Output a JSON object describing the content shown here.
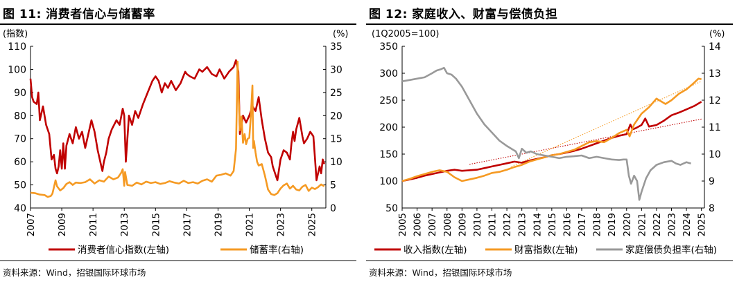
{
  "figures": [
    {
      "title": "图 11: 消费者信心与储蓄率",
      "left_unit": "(指数)",
      "right_unit": "(%)",
      "source": "资料来源：Wind，招银国际环球市场"
    },
    {
      "title": "图 12: 家庭收入、财富与偿债负担",
      "left_unit": "(1Q2005=100)",
      "right_unit": "(%)",
      "source": "资料来源：Wind，招银国际环球市场"
    }
  ],
  "chart_data": [
    {
      "type": "line",
      "title": "图 11: 消费者信心与储蓄率",
      "ylabel": "(指数)",
      "y2label": "(%)",
      "xlim": [
        2007,
        2025.9
      ],
      "ylim": [
        40,
        110
      ],
      "y2lim": [
        0,
        35
      ],
      "yticks": [
        40,
        50,
        60,
        70,
        80,
        90,
        100,
        110
      ],
      "y2ticks": [
        0,
        5,
        10,
        15,
        20,
        25,
        30,
        35
      ],
      "xticks": [
        "2007",
        "2009",
        "2011",
        "2013",
        "2015",
        "2017",
        "2019",
        "2021",
        "2023",
        "2025"
      ],
      "grid": false,
      "legend": "bottom",
      "series": [
        {
          "name": "消费者信心指数(左轴)",
          "axis": "left",
          "color": "#c00000",
          "x": [
            2007.0,
            2007.1,
            2007.2,
            2007.4,
            2007.5,
            2007.6,
            2007.8,
            2008.0,
            2008.2,
            2008.35,
            2008.5,
            2008.6,
            2008.7,
            2008.8,
            2008.9,
            2009.0,
            2009.1,
            2009.2,
            2009.3,
            2009.5,
            2009.7,
            2009.9,
            2010.1,
            2010.3,
            2010.5,
            2010.7,
            2010.9,
            2011.1,
            2011.3,
            2011.5,
            2011.6,
            2011.7,
            2011.85,
            2012.0,
            2012.2,
            2012.5,
            2012.7,
            2012.9,
            2013.0,
            2013.1,
            2013.3,
            2013.5,
            2013.7,
            2013.9,
            2014.2,
            2014.5,
            2014.8,
            2015.0,
            2015.2,
            2015.4,
            2015.6,
            2015.8,
            2016.0,
            2016.3,
            2016.6,
            2016.9,
            2017.0,
            2017.2,
            2017.5,
            2017.8,
            2018.0,
            2018.3,
            2018.6,
            2018.9,
            2019.1,
            2019.4,
            2019.7,
            2020.0,
            2020.15,
            2020.3,
            2020.4,
            2020.6,
            2020.8,
            2021.0,
            2021.2,
            2021.4,
            2021.5,
            2021.6,
            2021.8,
            2022.0,
            2022.2,
            2022.4,
            2022.5,
            2022.6,
            2022.8,
            2023.0,
            2023.2,
            2023.4,
            2023.6,
            2023.7,
            2023.8,
            2023.9,
            2024.0,
            2024.2,
            2024.4,
            2024.5,
            2024.7,
            2024.9,
            2025.1,
            2025.2,
            2025.3,
            2025.5,
            2025.6,
            2025.7,
            2025.8
          ],
          "values": [
            96,
            88,
            86,
            85,
            90,
            78,
            84,
            76,
            72,
            61,
            63,
            57,
            55,
            58,
            65,
            57,
            68,
            57,
            67,
            72,
            68,
            75,
            70,
            73,
            66,
            72,
            78,
            73,
            65,
            59,
            56,
            60,
            64,
            70,
            74,
            78,
            76,
            83,
            80,
            60,
            80,
            76,
            82,
            79,
            85,
            90,
            95,
            97,
            95,
            90,
            94,
            92,
            95,
            91,
            94,
            99,
            98,
            97,
            96,
            100,
            99,
            101,
            98,
            97,
            100,
            96,
            99,
            101,
            104,
            99,
            72,
            80,
            77,
            80,
            84,
            82,
            85,
            88,
            78,
            70,
            64,
            62,
            58,
            56,
            52,
            61,
            65,
            64,
            61,
            68,
            73,
            69,
            74,
            79,
            71,
            68,
            70,
            73,
            71,
            62,
            52,
            58,
            55,
            61,
            59
          ]
        },
        {
          "name": "储蓄率(右轴)",
          "axis": "right",
          "color": "#f59a23",
          "x": [
            2007.0,
            2007.3,
            2007.6,
            2007.9,
            2008.1,
            2008.3,
            2008.4,
            2008.5,
            2008.6,
            2008.7,
            2008.9,
            2009.1,
            2009.3,
            2009.5,
            2009.7,
            2009.9,
            2010.2,
            2010.5,
            2010.8,
            2011.1,
            2011.4,
            2011.7,
            2012.0,
            2012.3,
            2012.6,
            2012.8,
            2012.9,
            2013.0,
            2013.05,
            2013.2,
            2013.5,
            2013.8,
            2014.1,
            2014.4,
            2014.7,
            2015.0,
            2015.3,
            2015.6,
            2015.9,
            2016.2,
            2016.5,
            2016.8,
            2017.1,
            2017.4,
            2017.7,
            2018.0,
            2018.3,
            2018.6,
            2018.9,
            2019.2,
            2019.5,
            2019.8,
            2020.0,
            2020.15,
            2020.25,
            2020.3,
            2020.4,
            2020.5,
            2020.6,
            2020.7,
            2020.8,
            2020.9,
            2021.0,
            2021.1,
            2021.2,
            2021.25,
            2021.3,
            2021.4,
            2021.5,
            2021.6,
            2021.8,
            2022.0,
            2022.2,
            2022.4,
            2022.6,
            2022.8,
            2023.0,
            2023.2,
            2023.4,
            2023.6,
            2023.8,
            2024.0,
            2024.2,
            2024.4,
            2024.6,
            2024.8,
            2025.0,
            2025.2,
            2025.4,
            2025.6,
            2025.8
          ],
          "values": [
            3.3,
            3.2,
            2.9,
            2.8,
            2.4,
            2.6,
            3.1,
            4.5,
            6.0,
            4.7,
            3.8,
            4.3,
            5.2,
            5.6,
            5.0,
            5.5,
            5.4,
            5.6,
            6.2,
            5.3,
            6.0,
            5.7,
            6.8,
            6.2,
            6.6,
            7.6,
            8.4,
            4.8,
            7.8,
            5.0,
            4.8,
            5.5,
            5.1,
            5.7,
            5.4,
            5.6,
            5.2,
            5.4,
            5.8,
            5.5,
            5.3,
            5.9,
            5.4,
            5.6,
            5.3,
            5.9,
            6.2,
            5.7,
            7.0,
            7.2,
            7.5,
            7.0,
            8.0,
            12.8,
            31.7,
            26.0,
            16.8,
            19.8,
            14.1,
            16.0,
            13.8,
            15.0,
            15.2,
            20.0,
            26.5,
            13.0,
            14.5,
            12.0,
            10.0,
            9.2,
            9.5,
            7.0,
            4.0,
            3.0,
            2.8,
            3.2,
            4.2,
            4.9,
            5.3,
            4.2,
            4.8,
            4.0,
            3.8,
            4.6,
            5.0,
            3.7,
            4.4,
            4.1,
            4.5,
            5.1,
            4.7
          ]
        }
      ]
    },
    {
      "type": "line",
      "title": "图 12: 家庭收入、财富与偿债负担",
      "ylabel": "(1Q2005=100)",
      "y2label": "(%)",
      "xlim": [
        2005,
        2025.2
      ],
      "ylim": [
        50,
        350
      ],
      "y2lim": [
        8,
        14
      ],
      "yticks": [
        50,
        100,
        150,
        200,
        250,
        300,
        350
      ],
      "y2ticks": [
        8,
        9,
        10,
        11,
        12,
        13,
        14
      ],
      "xticks": [
        "2005",
        "2006",
        "2007",
        "2008",
        "2009",
        "2010",
        "2011",
        "2012",
        "2013",
        "2014",
        "2015",
        "2016",
        "2017",
        "2018",
        "2019",
        "2020",
        "2021",
        "2022",
        "2023",
        "2024",
        "2025"
      ],
      "grid": false,
      "legend": "bottom",
      "series": [
        {
          "name": "收入指数(左轴)",
          "axis": "left",
          "color": "#c00000",
          "x": [
            2005,
            2005.5,
            2006,
            2006.5,
            2007,
            2007.5,
            2008,
            2008.5,
            2009,
            2009.5,
            2010,
            2010.5,
            2011,
            2011.5,
            2012,
            2012.5,
            2013,
            2013.5,
            2014,
            2014.5,
            2015,
            2015.5,
            2016,
            2016.5,
            2017,
            2017.5,
            2018,
            2018.5,
            2019,
            2019.5,
            2020,
            2020.25,
            2020.4,
            2020.6,
            2021,
            2021.25,
            2021.5,
            2022,
            2022.5,
            2023,
            2023.5,
            2024,
            2024.5,
            2025
          ],
          "values": [
            100,
            103,
            106,
            110,
            113,
            116,
            119,
            121,
            119,
            120,
            121,
            124,
            127,
            130,
            133,
            136,
            134,
            138,
            141,
            144,
            148,
            150,
            153,
            156,
            160,
            165,
            170,
            175,
            180,
            184,
            187,
            205,
            196,
            198,
            204,
            216,
            201,
            204,
            212,
            222,
            227,
            233,
            239,
            247
          ]
        },
        {
          "name": "财富指数(左轴)",
          "axis": "left",
          "color": "#f59a23",
          "x": [
            2005,
            2005.5,
            2006,
            2006.5,
            2007,
            2007.5,
            2008,
            2008.5,
            2009,
            2009.5,
            2010,
            2010.5,
            2011,
            2011.5,
            2012,
            2012.5,
            2013,
            2013.5,
            2014,
            2014.5,
            2015,
            2015.5,
            2016,
            2016.5,
            2017,
            2017.5,
            2018,
            2018.5,
            2019,
            2019.5,
            2020,
            2020.2,
            2020.5,
            2021,
            2021.5,
            2022,
            2022.3,
            2022.6,
            2023,
            2023.5,
            2024,
            2024.5,
            2024.8,
            2025
          ],
          "values": [
            100,
            104,
            109,
            113,
            117,
            120,
            117,
            107,
            100,
            103,
            106,
            110,
            115,
            117,
            121,
            126,
            130,
            136,
            140,
            144,
            148,
            150,
            154,
            158,
            165,
            172,
            174,
            172,
            180,
            189,
            195,
            183,
            205,
            225,
            237,
            253,
            248,
            243,
            250,
            262,
            270,
            282,
            290,
            289
          ]
        },
        {
          "name": "家庭偿债负担率(右轴)",
          "axis": "right",
          "color": "#999999",
          "x": [
            2005,
            2005.5,
            2006,
            2006.5,
            2007,
            2007.3,
            2007.6,
            2007.8,
            2008,
            2008.3,
            2008.6,
            2009,
            2009.5,
            2010,
            2010.5,
            2011,
            2011.5,
            2012,
            2012.3,
            2012.6,
            2012.8,
            2013,
            2013.3,
            2013.6,
            2014,
            2014.5,
            2015,
            2015.5,
            2016,
            2016.5,
            2017,
            2017.5,
            2018,
            2018.5,
            2019,
            2019.5,
            2019.8,
            2020,
            2020.15,
            2020.3,
            2020.5,
            2020.7,
            2020.85,
            2021,
            2021.3,
            2021.6,
            2022,
            2022.5,
            2023,
            2023.3,
            2023.6,
            2024,
            2024.3
          ],
          "values": [
            12.7,
            12.75,
            12.8,
            12.85,
            13.0,
            13.1,
            13.15,
            13.2,
            13.0,
            12.95,
            12.8,
            12.5,
            12.0,
            11.5,
            11.1,
            10.8,
            10.5,
            10.3,
            10.2,
            10.1,
            9.85,
            10.2,
            10.05,
            10.1,
            10.0,
            9.95,
            9.9,
            9.85,
            9.9,
            9.92,
            9.95,
            9.85,
            9.9,
            9.85,
            9.8,
            9.78,
            9.8,
            9.8,
            9.2,
            8.9,
            9.2,
            9.0,
            8.3,
            8.6,
            9.1,
            9.4,
            9.6,
            9.7,
            9.75,
            9.65,
            9.6,
            9.7,
            9.65
          ]
        }
      ],
      "trendlines": [
        {
          "series": "收入指数(左轴)",
          "color": "#c00000",
          "x": [
            2009.5,
            2025
          ],
          "values": [
            131,
            215
          ]
        },
        {
          "series": "财富指数(左轴)",
          "color": "#f59a23",
          "x": [
            2012.3,
            2025
          ],
          "values": [
            127,
            285
          ]
        }
      ]
    }
  ]
}
